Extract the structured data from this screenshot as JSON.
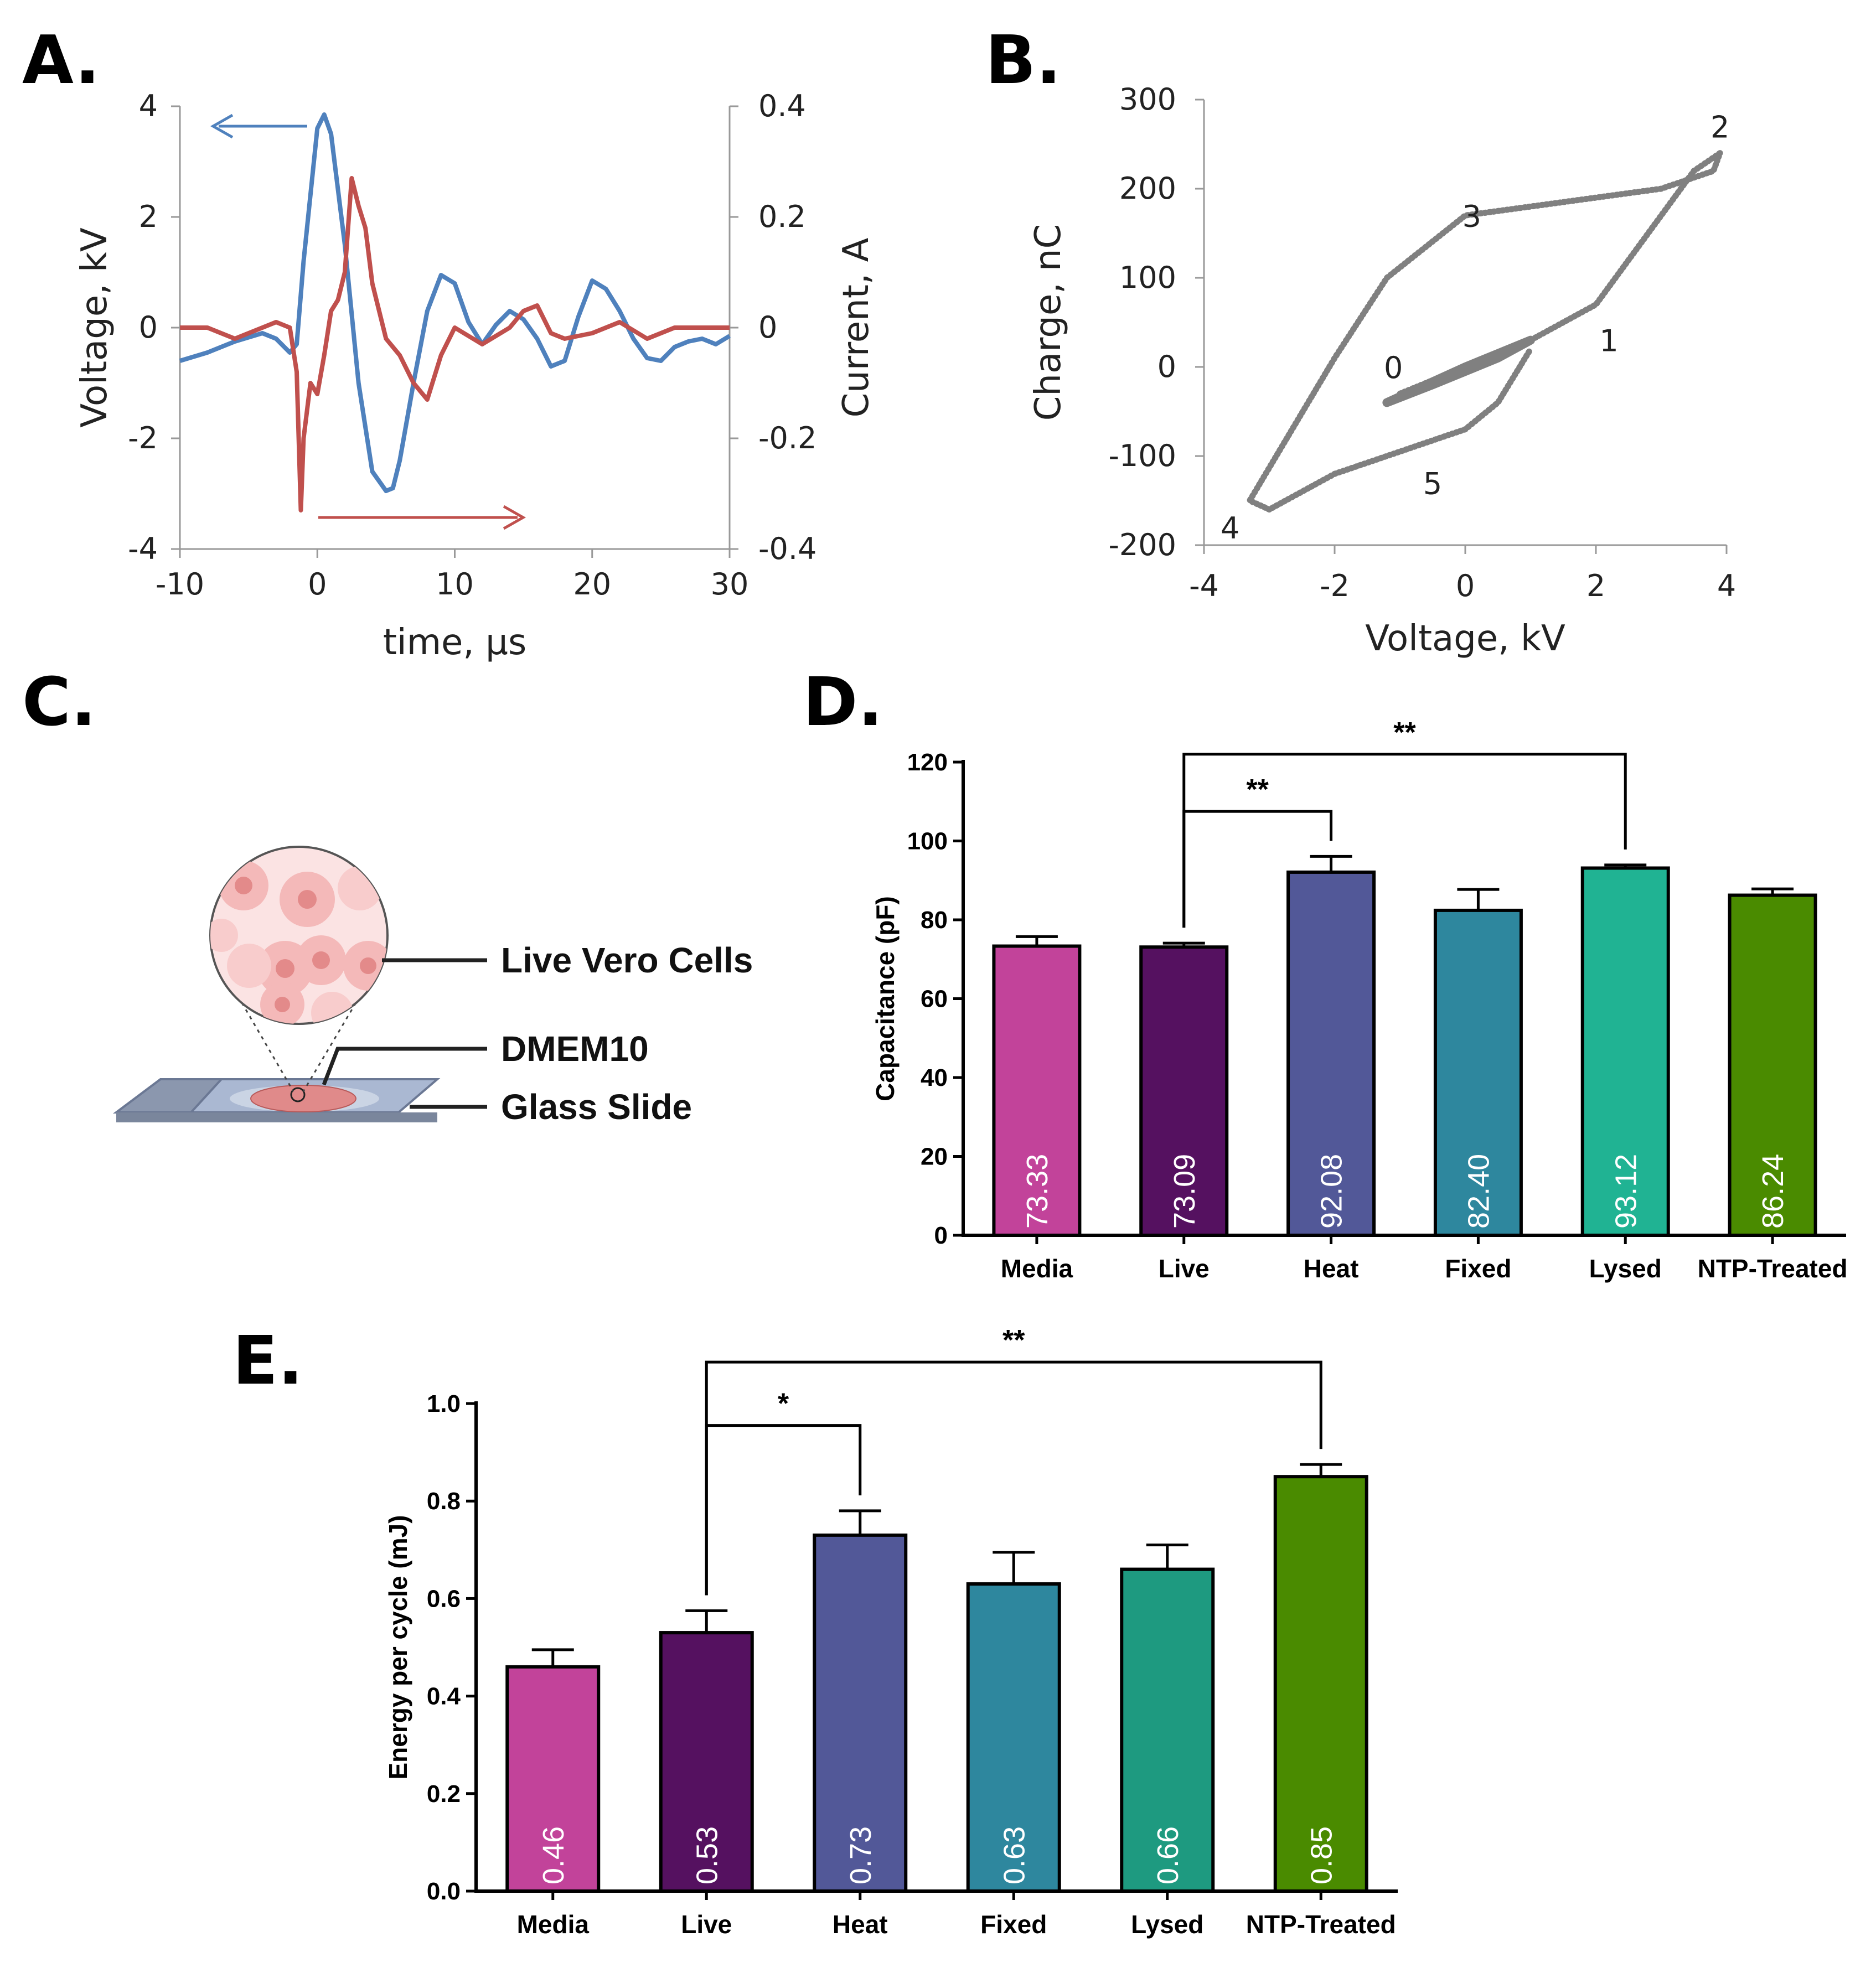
{
  "panels": {
    "A": "A.",
    "B": "B.",
    "C": "C.",
    "D": "D.",
    "E": "E."
  },
  "colors": {
    "voltage": "#4f81bd",
    "current": "#c0504d",
    "lissajous": "#808080",
    "bars": [
      "#c2439a",
      "#551160",
      "#525898",
      "#2e879e",
      "#20b393",
      "#4a8b00"
    ],
    "bars_e": [
      "#c2439a",
      "#551160",
      "#525898",
      "#2e879e",
      "#1e9a80",
      "#4a8b00"
    ]
  },
  "chart_data": [
    {
      "panel": "A",
      "type": "line",
      "xlabel": "time, µs",
      "ylabel": "Voltage, kV",
      "y2label": "Current, A",
      "xlim": [
        -10,
        30
      ],
      "ylim": [
        -4,
        4
      ],
      "y2lim": [
        -0.4,
        0.4
      ],
      "xticks": [
        -10,
        0,
        10,
        20,
        30
      ],
      "xtick_labels": [
        "-10",
        "0",
        "10",
        "20",
        "30"
      ],
      "yticks": [
        -4,
        -2,
        0,
        2,
        4
      ],
      "ytick_labels": [
        "-4",
        "-2",
        "0",
        "2",
        "4"
      ],
      "y2ticks": [
        -0.4,
        -0.2,
        0,
        0.2,
        0.4
      ],
      "y2tick_labels": [
        "-0.4",
        "-0.2",
        "0",
        "0.2",
        "0.4"
      ],
      "series": [
        {
          "name": "Voltage",
          "axis": "left",
          "x": [
            -10,
            -8,
            -6,
            -4,
            -3,
            -2,
            -1.5,
            -1,
            0,
            0.5,
            1,
            2,
            3,
            4,
            5,
            5.5,
            6,
            7,
            8,
            9,
            10,
            11,
            12,
            13,
            14,
            15,
            16,
            17,
            18,
            19,
            20,
            21,
            22,
            23,
            24,
            25,
            26,
            27,
            28,
            29,
            30
          ],
          "y": [
            -0.6,
            -0.45,
            -0.25,
            -0.1,
            -0.2,
            -0.45,
            -0.3,
            1.2,
            3.6,
            3.85,
            3.5,
            1.5,
            -1.0,
            -2.6,
            -2.95,
            -2.9,
            -2.4,
            -1.0,
            0.3,
            0.95,
            0.8,
            0.1,
            -0.3,
            0.05,
            0.3,
            0.15,
            -0.2,
            -0.7,
            -0.6,
            0.2,
            0.85,
            0.7,
            0.3,
            -0.2,
            -0.55,
            -0.6,
            -0.35,
            -0.25,
            -0.2,
            -0.3,
            -0.15
          ]
        },
        {
          "name": "Current",
          "axis": "right",
          "x": [
            -10,
            -8,
            -6,
            -4,
            -3,
            -2,
            -1.5,
            -1.2,
            -1,
            -0.5,
            0,
            0.5,
            1,
            1.5,
            2,
            2.5,
            3,
            3.5,
            4,
            5,
            6,
            7,
            8,
            9,
            10,
            12,
            14,
            15,
            16,
            17,
            18,
            20,
            22,
            24,
            26,
            28,
            30
          ],
          "y": [
            0.0,
            0.0,
            -0.02,
            0.0,
            0.01,
            0.0,
            -0.08,
            -0.33,
            -0.2,
            -0.1,
            -0.12,
            -0.05,
            0.03,
            0.05,
            0.1,
            0.27,
            0.22,
            0.18,
            0.08,
            -0.02,
            -0.05,
            -0.1,
            -0.13,
            -0.05,
            0.0,
            -0.03,
            0.0,
            0.03,
            0.04,
            -0.01,
            -0.02,
            -0.01,
            0.01,
            -0.02,
            0.0,
            0.0,
            0.0
          ]
        }
      ],
      "annotations": [
        "arrow-left-to-voltage-axis",
        "arrow-right-to-current-axis"
      ]
    },
    {
      "panel": "B",
      "type": "scatter",
      "xlabel": "Voltage, kV",
      "ylabel": "Charge, nC",
      "xlim": [
        -4,
        4
      ],
      "ylim": [
        -200,
        300
      ],
      "xticks": [
        -4,
        -2,
        0,
        2,
        4
      ],
      "xtick_labels": [
        "-4",
        "-2",
        "0",
        "2",
        "4"
      ],
      "yticks": [
        -200,
        -100,
        0,
        100,
        200,
        300
      ],
      "ytick_labels": [
        "-200",
        "-100",
        "0",
        "100",
        "200",
        "300"
      ],
      "loop_x": [
        -1.0,
        1.0,
        2.0,
        2.8,
        3.5,
        3.9,
        3.8,
        3.0,
        0.0,
        -1.2,
        -2.0,
        -3.3,
        -3.0,
        -2.0,
        0.0,
        0.5,
        1.0
      ],
      "loop_y": [
        -30,
        30,
        70,
        150,
        220,
        240,
        220,
        200,
        170,
        100,
        10,
        -150,
        -160,
        -120,
        -70,
        -40,
        20
      ],
      "inner_x": [
        -1.2,
        0.0,
        1.0,
        0.5,
        -0.5,
        -1.2
      ],
      "inner_y": [
        -40,
        0,
        30,
        10,
        -20,
        -40
      ],
      "point_labels": [
        "0",
        "1",
        "2",
        "3",
        "4",
        "5"
      ],
      "point_label_x": [
        -1.1,
        2.2,
        3.9,
        0.1,
        -3.6,
        -0.5
      ],
      "point_label_y": [
        0,
        30,
        270,
        170,
        -180,
        -130
      ]
    },
    {
      "panel": "D",
      "type": "bar",
      "ylabel": "Capacitance (pF)",
      "ylim": [
        0,
        120
      ],
      "yticks": [
        0,
        20,
        40,
        60,
        80,
        100,
        120
      ],
      "ytick_labels": [
        "0",
        "20",
        "40",
        "60",
        "80",
        "100",
        "120"
      ],
      "categories": [
        "Media",
        "Live",
        "Heat",
        "Fixed",
        "Lysed",
        "NTP-Treated"
      ],
      "values": [
        73.33,
        73.09,
        92.08,
        82.4,
        93.12,
        86.24
      ],
      "value_labels": [
        "73.33",
        "73.09",
        "92.08",
        "82.40",
        "93.12",
        "86.24"
      ],
      "errors": [
        2.4,
        1.0,
        4.0,
        5.3,
        0.8,
        1.6
      ],
      "significance": [
        {
          "from": 1,
          "to": 2,
          "label": "**",
          "bar_y": 107.5
        },
        {
          "from": 1,
          "to": 4,
          "label": "**",
          "bar_y": 122
        }
      ]
    },
    {
      "panel": "E",
      "type": "bar",
      "ylabel": "Energy per cycle (mJ)",
      "ylim": [
        0,
        1.0
      ],
      "yticks": [
        0,
        0.2,
        0.4,
        0.6,
        0.8,
        1.0
      ],
      "ytick_labels": [
        "0.0",
        "0.2",
        "0.4",
        "0.6",
        "0.8",
        "1.0"
      ],
      "categories": [
        "Media",
        "Live",
        "Heat",
        "Fixed",
        "Lysed",
        "NTP-Treated"
      ],
      "values": [
        0.46,
        0.53,
        0.73,
        0.63,
        0.66,
        0.85
      ],
      "value_labels": [
        "0.46",
        "0.53",
        "0.73",
        "0.63",
        "0.66",
        "0.85"
      ],
      "errors": [
        0.035,
        0.045,
        0.05,
        0.065,
        0.05,
        0.025
      ],
      "significance": [
        {
          "from": 1,
          "to": 2,
          "label": "*",
          "bar_y": 0.955
        },
        {
          "from": 1,
          "to": 5,
          "label": "**",
          "bar_y": 1.085
        }
      ]
    }
  ],
  "diagram_c": {
    "labels": [
      "Live Vero Cells",
      "DMEM10",
      "Glass Slide"
    ]
  }
}
